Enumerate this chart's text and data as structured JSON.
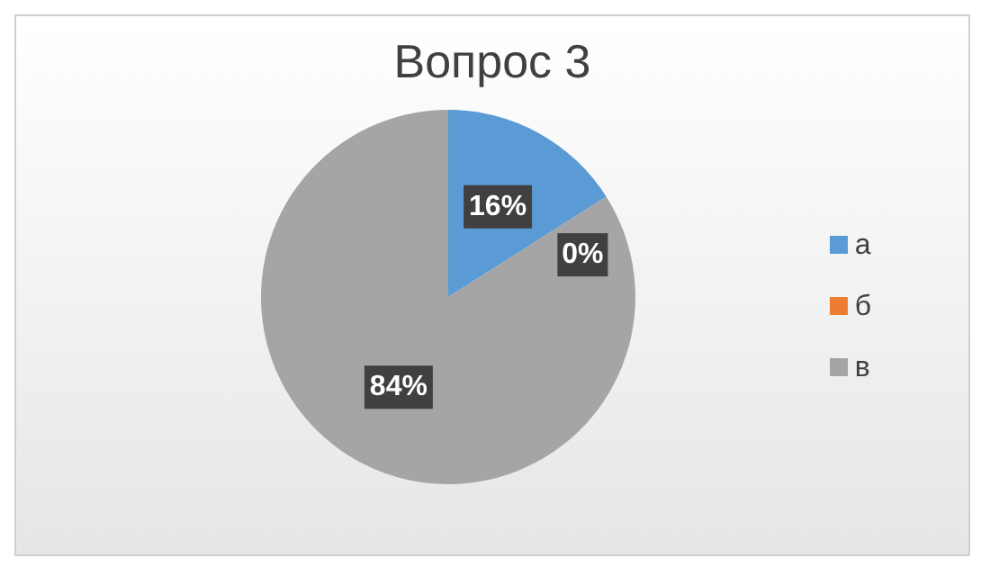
{
  "chart_data": {
    "type": "pie",
    "title": "Вопрос 3",
    "categories": [
      "а",
      "б",
      "в"
    ],
    "values": [
      16,
      0,
      84
    ],
    "colors": [
      "#5b9bd5",
      "#ed7d31",
      "#a5a5a5"
    ],
    "value_labels": [
      "16%",
      "0%",
      "84%"
    ],
    "legend": "right"
  }
}
